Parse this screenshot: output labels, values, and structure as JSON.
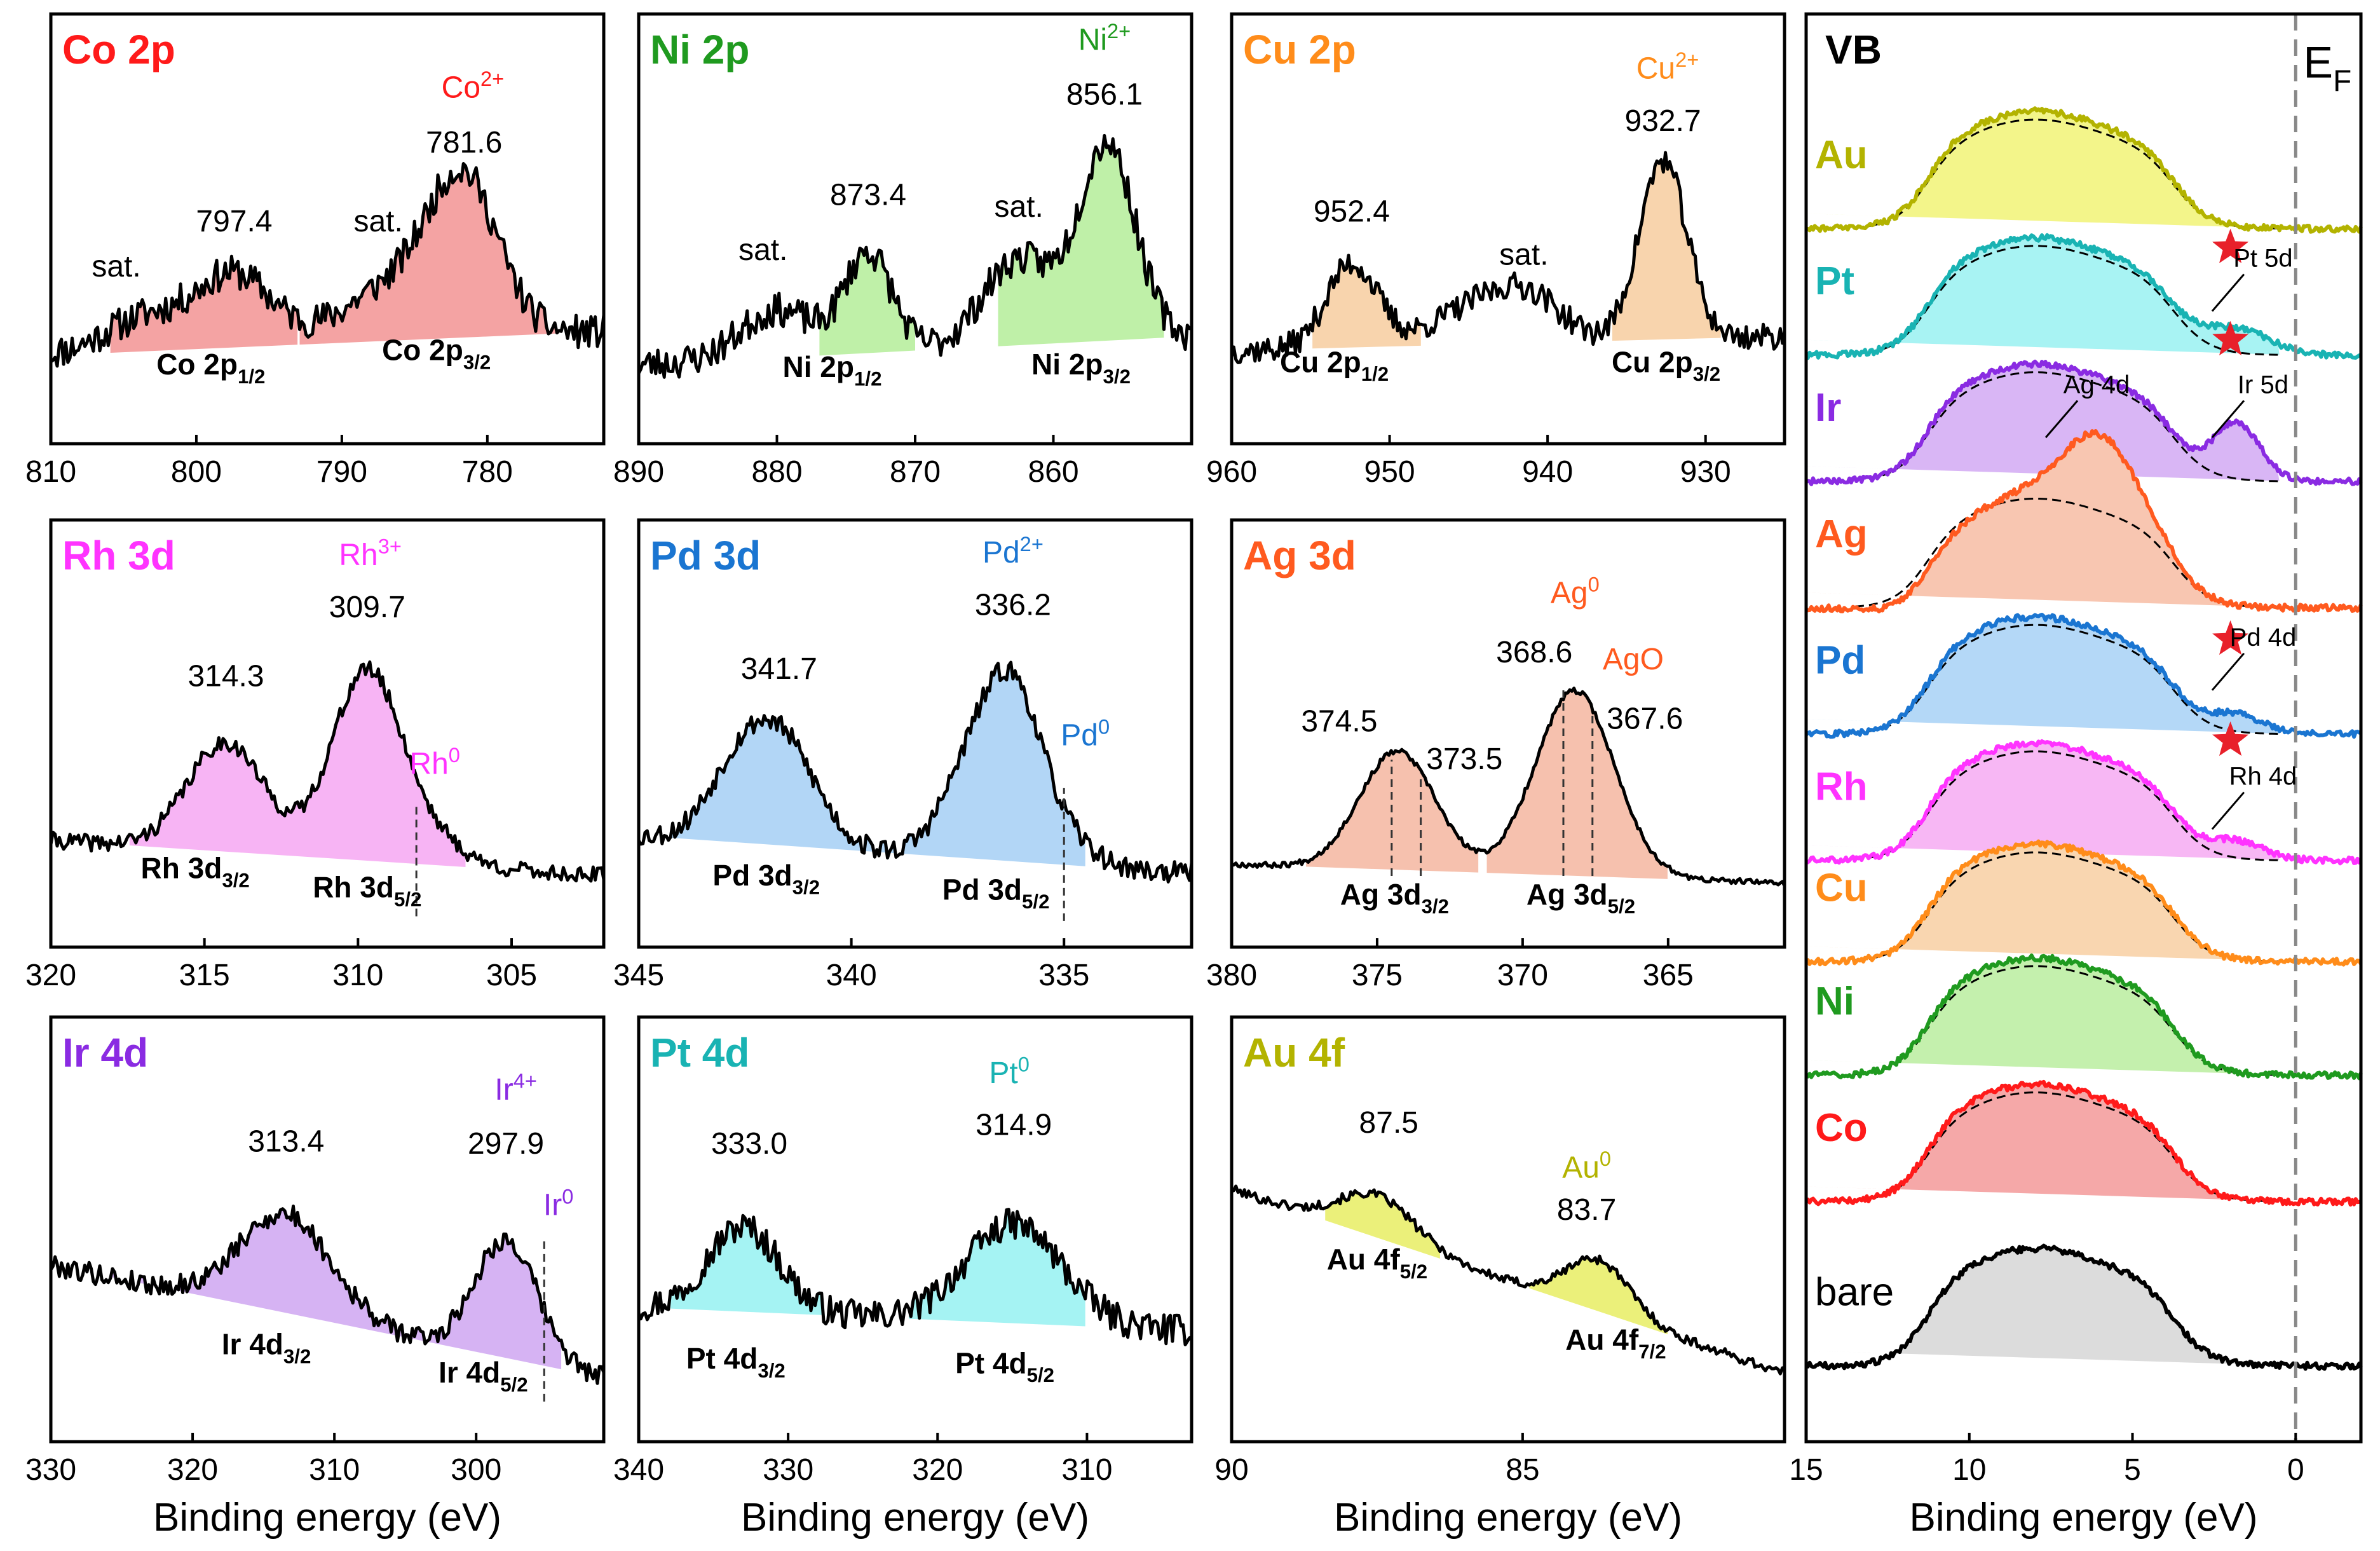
{
  "figure": {
    "xlabel": "Binding energy (eV)",
    "colors": {
      "Co": "#ff1a1a",
      "Ni": "#1f9a1f",
      "Cu": "#ff8c1a",
      "Rh": "#ff33ff",
      "Pd": "#1a75d1",
      "Ag": "#ff5a1f",
      "Ir": "#8a2be2",
      "Pt": "#19b3b3",
      "Au": "#b3b300"
    }
  },
  "chart_data": [
    {
      "type": "line",
      "id": "co2p",
      "title": "Co 2p",
      "color": "#ff1a1a",
      "fill": "#f4a3a3",
      "xlim": [
        810,
        772
      ],
      "xticks": [
        810,
        800,
        790,
        780
      ],
      "xlabel": "",
      "baseline": [
        0.12,
        0.22
      ],
      "noise": 0.07,
      "seed": 11,
      "peaks": [
        [
          781.6,
          0.62,
          2.4
        ],
        [
          786.5,
          0.22,
          3.5
        ],
        [
          797.4,
          0.3,
          2.6
        ],
        [
          803.5,
          0.14,
          2.8
        ]
      ],
      "fill_ranges": [
        [
          806,
          793
        ],
        [
          793,
          775
        ]
      ],
      "labels": [
        {
          "text": "sat.",
          "x": 805.5,
          "y": 0.45
        },
        {
          "text": "797.4",
          "x": 797.4,
          "y": 0.64
        },
        {
          "text": "sat.",
          "x": 787.5,
          "y": 0.64
        },
        {
          "text": "781.6",
          "x": 781.6,
          "y": 0.97
        },
        {
          "text": "Co",
          "sup": "2+",
          "x": 781.0,
          "y": 1.2,
          "colored": true
        }
      ],
      "sublabels": [
        {
          "text": "Co 2p",
          "sub": "1/2",
          "x": 799,
          "y": 0.04
        },
        {
          "text": "Co 2p",
          "sub": "3/2",
          "x": 783.5,
          "y": 0.1
        }
      ],
      "dashes": []
    },
    {
      "type": "line",
      "id": "ni2p",
      "title": "Ni 2p",
      "color": "#1f9a1f",
      "fill": "#bff0a8",
      "xlim": [
        890,
        850
      ],
      "xticks": [
        890,
        880,
        870,
        860
      ],
      "xlabel": "",
      "baseline": [
        0.08,
        0.2
      ],
      "noise": 0.07,
      "seed": 23,
      "peaks": [
        [
          856.1,
          0.82,
          2.0
        ],
        [
          862.5,
          0.36,
          2.6
        ],
        [
          873.4,
          0.42,
          1.7
        ],
        [
          880,
          0.2,
          2.6
        ]
      ],
      "fill_ranges": [
        [
          877,
          870
        ],
        [
          864,
          852
        ]
      ],
      "labels": [
        {
          "text": "sat.",
          "x": 881,
          "y": 0.52
        },
        {
          "text": "873.4",
          "x": 873.4,
          "y": 0.75
        },
        {
          "text": "sat.",
          "x": 862.5,
          "y": 0.7
        },
        {
          "text": "856.1",
          "x": 856.3,
          "y": 1.17
        },
        {
          "text": "Ni",
          "sup": "2+",
          "x": 856.3,
          "y": 1.4,
          "colored": true
        }
      ],
      "sublabels": [
        {
          "text": "Ni 2p",
          "sub": "1/2",
          "x": 876,
          "y": 0.03
        },
        {
          "text": "Ni 2p",
          "sub": "3/2",
          "x": 858,
          "y": 0.04
        }
      ],
      "dashes": []
    },
    {
      "type": "line",
      "id": "cu2p",
      "title": "Cu 2p",
      "color": "#ff8c1a",
      "fill": "#f8d4ad",
      "xlim": [
        960,
        925
      ],
      "xticks": [
        960,
        950,
        940,
        930
      ],
      "xlabel": "",
      "baseline": [
        0.14,
        0.2
      ],
      "noise": 0.055,
      "seed": 37,
      "peaks": [
        [
          932.7,
          0.75,
          1.5
        ],
        [
          944,
          0.17,
          3.0
        ],
        [
          941,
          0.12,
          2.0
        ],
        [
          952.4,
          0.35,
          1.6
        ]
      ],
      "fill_ranges": [
        [
          955,
          948
        ],
        [
          936,
          929
        ]
      ],
      "labels": [
        {
          "text": "952.4",
          "x": 952.4,
          "y": 0.68
        },
        {
          "text": "sat.",
          "x": 941.5,
          "y": 0.5
        },
        {
          "text": "932.7",
          "x": 932.7,
          "y": 1.06
        },
        {
          "text": "Cu",
          "sup": "2+",
          "x": 932.4,
          "y": 1.28,
          "colored": true
        }
      ],
      "sublabels": [
        {
          "text": "Cu 2p",
          "sub": "1/2",
          "x": 953.5,
          "y": 0.05
        },
        {
          "text": "Cu 2p",
          "sub": "3/2",
          "x": 932.5,
          "y": 0.05
        }
      ],
      "dashes": []
    },
    {
      "type": "line",
      "id": "rh3d",
      "title": "Rh 3d",
      "color": "#ff33ff",
      "fill": "#f7b4f4",
      "xlim": [
        320,
        302
      ],
      "xticks": [
        320,
        315,
        310,
        305
      ],
      "xlabel": "",
      "baseline": [
        0.2,
        0.05
      ],
      "noise": 0.035,
      "seed": 41,
      "peaks": [
        [
          309.7,
          0.8,
          1.15
        ],
        [
          314.3,
          0.46,
          1.25
        ],
        [
          307.5,
          0.08,
          1.0
        ]
      ],
      "fill_ranges": [
        [
          317.5,
          306.5
        ]
      ],
      "labels": [
        {
          "text": "314.3",
          "x": 314.3,
          "y": 0.85
        },
        {
          "text": "309.7",
          "x": 309.7,
          "y": 1.14
        },
        {
          "text": "Rh",
          "sup": "3+",
          "x": 309.6,
          "y": 1.36,
          "colored": true
        },
        {
          "text": "Rh",
          "sup": "0",
          "x": 307.5,
          "y": 0.48,
          "colored": true
        }
      ],
      "sublabels": [
        {
          "text": "Rh 3d",
          "sub": "3/2",
          "x": 315.3,
          "y": 0.04
        },
        {
          "text": "Rh 3d",
          "sub": "5/2",
          "x": 309.7,
          "y": -0.04
        }
      ],
      "dashes": [
        {
          "x": 308.1,
          "y0": -0.12,
          "y1": 0.36
        }
      ]
    },
    {
      "type": "line",
      "id": "pd3d",
      "title": "Pd 3d",
      "color": "#1a75d1",
      "fill": "#b2d6f6",
      "xlim": [
        345,
        332
      ],
      "xticks": [
        345,
        340,
        335
      ],
      "xlabel": "",
      "baseline": [
        0.22,
        0.06
      ],
      "noise": 0.045,
      "seed": 53,
      "peaks": [
        [
          336.2,
          0.72,
          0.75
        ],
        [
          337.3,
          0.25,
          0.7
        ],
        [
          341.7,
          0.45,
          0.85
        ],
        [
          342.8,
          0.2,
          0.7
        ],
        [
          334.6,
          0.05,
          0.5
        ]
      ],
      "fill_ranges": [
        [
          344.5,
          339.5
        ],
        [
          339.3,
          334.5
        ]
      ],
      "labels": [
        {
          "text": "341.7",
          "x": 341.7,
          "y": 0.88
        },
        {
          "text": "336.2",
          "x": 336.2,
          "y": 1.15
        },
        {
          "text": "Pd",
          "sup": "2+",
          "x": 336.2,
          "y": 1.37,
          "colored": true
        },
        {
          "text": "Pd",
          "sup": "0",
          "x": 334.5,
          "y": 0.6,
          "colored": true
        }
      ],
      "sublabels": [
        {
          "text": "Pd 3d",
          "sub": "3/2",
          "x": 342.0,
          "y": 0.01
        },
        {
          "text": "Pd 3d",
          "sub": "5/2",
          "x": 336.6,
          "y": -0.05
        }
      ],
      "dashes": [
        {
          "x": 335.0,
          "y0": -0.14,
          "y1": 0.42
        }
      ]
    },
    {
      "type": "line",
      "id": "ag3d",
      "title": "Ag 3d",
      "color": "#ff5a1f",
      "fill": "#f6c1ae",
      "xlim": [
        380,
        361
      ],
      "xticks": [
        380,
        375,
        370,
        365
      ],
      "xlabel": "",
      "baseline": [
        0.1,
        0.02
      ],
      "noise": 0.012,
      "seed": 67,
      "peaks": [
        [
          374.3,
          0.5,
          1.3
        ],
        [
          368.2,
          0.78,
          1.35
        ]
      ],
      "fill_ranges": [
        [
          377.5,
          371.5
        ],
        [
          371.3,
          365.0
        ]
      ],
      "labels": [
        {
          "text": "374.5",
          "x": 376.3,
          "y": 0.66
        },
        {
          "text": "373.5",
          "x": 372.0,
          "y": 0.5
        },
        {
          "text": "368.6",
          "x": 369.6,
          "y": 0.95
        },
        {
          "text": "Ag",
          "sup": "0",
          "x": 368.2,
          "y": 1.2,
          "colored": true
        },
        {
          "text": "AgO",
          "x": 366.2,
          "y": 0.92,
          "colored": true
        },
        {
          "text": "367.6",
          "x": 365.8,
          "y": 0.67
        }
      ],
      "sublabels": [
        {
          "text": "Ag 3d",
          "sub": "3/2",
          "x": 374.4,
          "y": -0.07
        },
        {
          "text": "Ag 3d",
          "sub": "5/2",
          "x": 368.0,
          "y": -0.07
        }
      ],
      "dashes": [
        {
          "x": 374.5,
          "y0": 0.05,
          "y1": 0.54
        },
        {
          "x": 373.5,
          "y0": 0.05,
          "y1": 0.48
        },
        {
          "x": 368.6,
          "y0": 0.05,
          "y1": 0.84
        },
        {
          "x": 367.6,
          "y0": 0.05,
          "y1": 0.74
        }
      ]
    },
    {
      "type": "line",
      "id": "ir4d",
      "title": "Ir 4d",
      "color": "#8a2be2",
      "fill": "#d6b3f3",
      "xlim": [
        330,
        291
      ],
      "xticks": [
        330,
        320,
        310,
        300
      ],
      "xlabel": "Binding energy (eV)",
      "baseline": [
        0.5,
        0.02
      ],
      "noise": 0.045,
      "seed": 79,
      "peaks": [
        [
          313.4,
          0.42,
          3.2
        ],
        [
          297.9,
          0.5,
          2.2
        ]
      ],
      "fill_ranges": [
        [
          327,
          294
        ]
      ],
      "labels": [
        {
          "text": "313.4",
          "x": 313.4,
          "y": 0.98
        },
        {
          "text": "297.9",
          "x": 297.9,
          "y": 0.97
        },
        {
          "text": "Ir",
          "sup": "4+",
          "x": 297.2,
          "y": 1.2,
          "colored": true
        },
        {
          "text": "Ir",
          "sup": "0",
          "x": 294.2,
          "y": 0.71,
          "colored": true
        }
      ],
      "sublabels": [
        {
          "text": "Ir 4d",
          "sub": "3/2",
          "x": 314.8,
          "y": 0.12
        },
        {
          "text": "Ir 4d",
          "sub": "5/2",
          "x": 299.5,
          "y": 0.0
        }
      ],
      "dashes": [
        {
          "x": 295.2,
          "y0": -0.08,
          "y1": 0.62
        }
      ]
    },
    {
      "type": "line",
      "id": "pt4d",
      "title": "Pt 4d",
      "color": "#19b3b3",
      "fill": "#a5f3f3",
      "xlim": [
        340,
        303
      ],
      "xticks": [
        340,
        330,
        320,
        310
      ],
      "xlabel": "Binding energy (eV)",
      "baseline": [
        0.32,
        0.22
      ],
      "noise": 0.065,
      "seed": 97,
      "peaks": [
        [
          333.0,
          0.36,
          2.4
        ],
        [
          314.9,
          0.42,
          3.2
        ]
      ],
      "fill_ranges": [
        [
          338,
          327
        ],
        [
          322,
          310
        ]
      ],
      "labels": [
        {
          "text": "333.0",
          "x": 332.6,
          "y": 0.97
        },
        {
          "text": "314.9",
          "x": 314.9,
          "y": 1.05
        },
        {
          "text": "Pt",
          "sup": "0",
          "x": 315.2,
          "y": 1.27,
          "colored": true
        }
      ],
      "sublabels": [
        {
          "text": "Pt 4d",
          "sub": "3/2",
          "x": 333.5,
          "y": 0.06
        },
        {
          "text": "Pt 4d",
          "sub": "5/2",
          "x": 315.5,
          "y": 0.04
        }
      ],
      "dashes": []
    },
    {
      "type": "line",
      "id": "au4f",
      "title": "Au 4f",
      "color": "#b3b300",
      "fill": "#ebf07a",
      "xlim": [
        90,
        80.5
      ],
      "xticks": [
        90,
        85
      ],
      "xlabel": "Binding energy (eV)",
      "baseline": [
        0.82,
        0.04
      ],
      "noise": 0.02,
      "seed": 101,
      "peaks": [
        [
          87.5,
          0.18,
          0.65
        ],
        [
          83.7,
          0.22,
          0.55
        ]
      ],
      "fill_ranges": [
        [
          88.4,
          86.4
        ],
        [
          84.9,
          82.5
        ]
      ],
      "labels": [
        {
          "text": "87.5",
          "x": 87.3,
          "y": 1.06
        },
        {
          "text": "Au",
          "sup": "0",
          "x": 83.9,
          "y": 0.87,
          "colored": true
        },
        {
          "text": "83.7",
          "x": 83.9,
          "y": 0.69
        }
      ],
      "sublabels": [
        {
          "text": "Au 4f",
          "sub": "5/2",
          "x": 87.5,
          "y": 0.48
        },
        {
          "text": "Au 4f",
          "sub": "7/2",
          "x": 83.4,
          "y": 0.14
        }
      ],
      "dashes": []
    },
    {
      "type": "line",
      "id": "vb",
      "title": "VB",
      "ef_label": "E",
      "ef_sub": "F",
      "xlim": [
        15,
        -2
      ],
      "xticks": [
        15,
        10,
        5,
        0
      ],
      "xlabel": "Binding energy (eV)",
      "ef_x": 0,
      "series": [
        {
          "name": "Au",
          "color": "#b3b300",
          "fill": "#f3f58a",
          "offset": 9.0
        },
        {
          "name": "Pt",
          "color": "#19b3b3",
          "fill": "#a8f3f3",
          "offset": 8.0
        },
        {
          "name": "Ir",
          "color": "#8a2be2",
          "fill": "#d9b6f5",
          "offset": 7.0
        },
        {
          "name": "Ag",
          "color": "#ff5a1f",
          "fill": "#f8c6b1",
          "offset": 6.0
        },
        {
          "name": "Pd",
          "color": "#1a75d1",
          "fill": "#b4d8f7",
          "offset": 5.0
        },
        {
          "name": "Rh",
          "color": "#ff33ff",
          "fill": "#f7b7f4",
          "offset": 4.0
        },
        {
          "name": "Cu",
          "color": "#ff8c1a",
          "fill": "#f9d6b0",
          "offset": 3.2
        },
        {
          "name": "Ni",
          "color": "#1f9a1f",
          "fill": "#c4f0ad",
          "offset": 2.3
        },
        {
          "name": "Co",
          "color": "#ff1a1a",
          "fill": "#f5a8a8",
          "offset": 1.3
        },
        {
          "name": "bare",
          "color": "#000000",
          "fill": "#dcdcdc",
          "offset": 0.0
        }
      ],
      "annotations": [
        {
          "text": "Pt 5d",
          "x": 1.0,
          "y": 8.7
        },
        {
          "text": "Ag 4d",
          "x": 6.1,
          "y": 7.7
        },
        {
          "text": "Ir 5d",
          "x": 1.0,
          "y": 7.7
        },
        {
          "text": "Pd 4d",
          "x": 1.0,
          "y": 5.7
        },
        {
          "text": "Rh 4d",
          "x": 1.0,
          "y": 4.6
        }
      ],
      "stars": [
        {
          "x": 2.0,
          "y": 8.85
        },
        {
          "x": 2.0,
          "y": 8.12
        },
        {
          "x": 2.0,
          "y": 5.75
        },
        {
          "x": 2.0,
          "y": 4.95
        }
      ]
    }
  ]
}
